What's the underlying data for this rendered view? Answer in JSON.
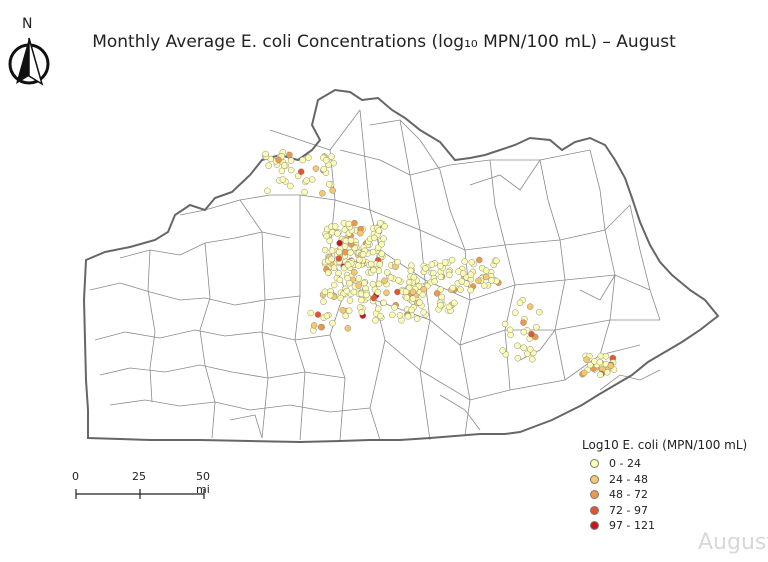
{
  "map": {
    "title": "Monthly Average E. coli Concentrations (log₁₀ MPN/100 mL) – August",
    "north_label": "N",
    "scale": {
      "labels": [
        "0",
        "25",
        "50 mi"
      ]
    },
    "corner_text": "August",
    "legend": {
      "title": "Log10 E. coli (MPN/100 mL)",
      "classes": [
        {
          "label": "0 - 24",
          "color": "#fdfdb4"
        },
        {
          "label": "24 - 48",
          "color": "#f5c870"
        },
        {
          "label": "48 - 72",
          "color": "#ee9848"
        },
        {
          "label": "72 - 97",
          "color": "#e25530"
        },
        {
          "label": "97 - 121",
          "color": "#c4161c"
        }
      ]
    },
    "colors": {
      "state_border": "#666666",
      "county_line": "#8a8a8a",
      "point_stroke": "#888888"
    }
  }
}
